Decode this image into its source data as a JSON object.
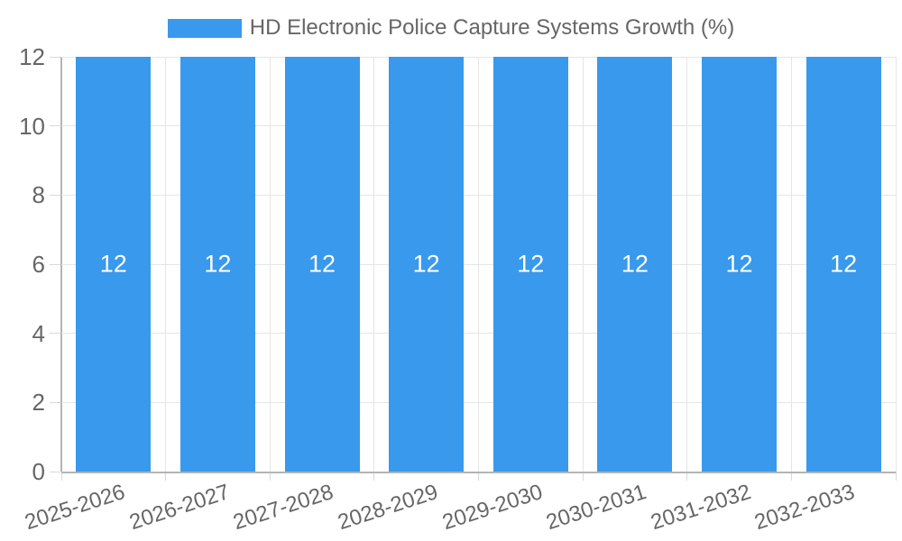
{
  "chart_data": {
    "type": "bar",
    "title": "HD Electronic Police Capture Systems Growth (%)",
    "categories": [
      "2025-2026",
      "2026-2027",
      "2027-2028",
      "2028-2029",
      "2029-2030",
      "2030-2031",
      "2031-2032",
      "2032-2033"
    ],
    "values": [
      12,
      12,
      12,
      12,
      12,
      12,
      12,
      12
    ],
    "xlabel": "",
    "ylabel": "",
    "ylim": [
      0,
      12
    ],
    "yticks": [
      0,
      2,
      4,
      6,
      8,
      10,
      12
    ],
    "grid": "on",
    "legend_position": "top",
    "colors": {
      "bar": "#3999EC",
      "value_label": "#FFFFFF",
      "text": "#666666",
      "grid": "#E5E5E5",
      "tick": "#D9D9D9",
      "axis_line": "#B4B4B4"
    }
  }
}
